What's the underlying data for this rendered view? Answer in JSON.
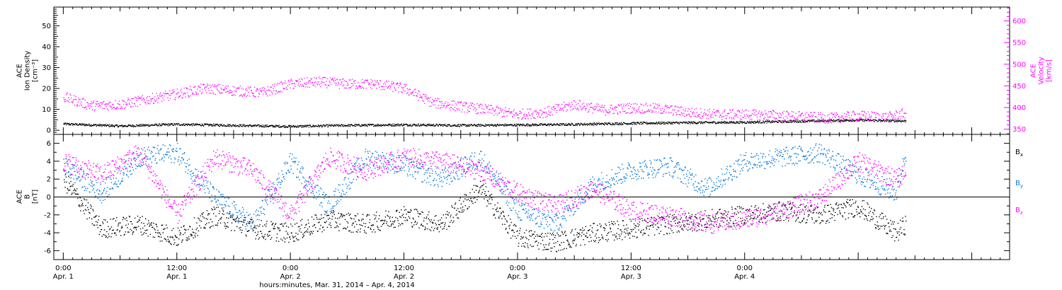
{
  "chart_data": [
    {
      "type": "scatter",
      "panel": "top",
      "ylabel_lines": [
        "ACE",
        "Ion Density",
        "[cm⁻³]"
      ],
      "ylim": [
        -2,
        59
      ],
      "yticks": [
        0,
        10,
        20,
        30,
        40,
        50
      ],
      "y2label_lines": [
        "ACE",
        "Velocity",
        "[km/s]"
      ],
      "y2lim": [
        338,
        632
      ],
      "y2ticks": [
        350,
        400,
        450,
        500,
        550,
        600
      ],
      "series": [
        {
          "axis": "left",
          "color": "#000000",
          "x_hours": [
            0,
            6,
            12,
            18,
            24,
            30,
            36,
            42,
            48,
            54,
            60,
            66,
            72,
            78,
            84,
            89
          ],
          "values": [
            3.2,
            2.2,
            3.0,
            2.5,
            2.0,
            2.5,
            2.8,
            2.5,
            2.7,
            3.0,
            3.5,
            3.8,
            4.0,
            4.5,
            5.0,
            4.6
          ]
        },
        {
          "axis": "right",
          "color": "#ff00ff",
          "x_hours": [
            0,
            3,
            6,
            9,
            12,
            15,
            18,
            21,
            24,
            27,
            30,
            33,
            36,
            39,
            42,
            45,
            48,
            51,
            54,
            57,
            60,
            63,
            66,
            69,
            72,
            75,
            78,
            81,
            84,
            87,
            89
          ],
          "values": [
            425,
            405,
            408,
            420,
            432,
            445,
            440,
            435,
            455,
            460,
            455,
            455,
            445,
            412,
            403,
            395,
            385,
            390,
            408,
            395,
            400,
            398,
            390,
            385,
            385,
            383,
            380,
            376,
            382,
            378,
            388
          ]
        }
      ]
    },
    {
      "type": "scatter",
      "panel": "bottom",
      "ylabel_lines": [
        "ACE",
        "B",
        "[nT]"
      ],
      "ylim": [
        -7,
        7
      ],
      "yticks": [
        -6,
        -4,
        -2,
        0,
        2,
        4,
        6
      ],
      "zero_line": true,
      "series": [
        {
          "name": "Bx",
          "color": "#000000",
          "x_hours": [
            0,
            4,
            8,
            12,
            16,
            20,
            24,
            28,
            32,
            36,
            40,
            44,
            48,
            52,
            56,
            60,
            64,
            68,
            72,
            76,
            80,
            84,
            88,
            89
          ],
          "values": [
            2.0,
            -3.5,
            -3.0,
            -4.5,
            -2.0,
            -3.5,
            -4.0,
            -2.5,
            -3.0,
            -2.0,
            -3.0,
            1.0,
            -4.5,
            -5.0,
            -4.0,
            -3.5,
            -3.0,
            -2.5,
            -2.0,
            -1.5,
            -2.0,
            -1.0,
            -4.0,
            -3.0
          ]
        },
        {
          "name": "By",
          "color": "#0077dd",
          "x_hours": [
            0,
            4,
            8,
            12,
            16,
            20,
            24,
            28,
            32,
            36,
            40,
            44,
            48,
            52,
            56,
            60,
            64,
            68,
            72,
            76,
            80,
            84,
            88,
            89
          ],
          "values": [
            3.5,
            0.5,
            4.5,
            5.0,
            0.0,
            -3.0,
            4.0,
            -1.0,
            4.5,
            3.5,
            2.0,
            4.5,
            -1.5,
            -3.0,
            1.5,
            3.0,
            3.5,
            1.0,
            4.0,
            4.5,
            5.0,
            2.5,
            0.5,
            5.0
          ]
        },
        {
          "name": "Bz",
          "color": "#ff00ff",
          "x_hours": [
            0,
            4,
            8,
            12,
            16,
            20,
            24,
            28,
            32,
            36,
            40,
            44,
            48,
            52,
            56,
            60,
            64,
            68,
            72,
            76,
            80,
            84,
            88,
            89
          ],
          "values": [
            4.0,
            2.5,
            5.0,
            -2.0,
            4.5,
            3.0,
            -2.0,
            4.5,
            3.0,
            4.5,
            4.0,
            3.0,
            0.5,
            -1.0,
            1.0,
            -1.5,
            -2.0,
            -3.0,
            -2.5,
            -1.5,
            0.0,
            4.0,
            2.0,
            3.0
          ]
        }
      ],
      "legend_labels": [
        "B",
        "B",
        "B"
      ],
      "legend_subscripts": [
        "x",
        "y",
        "z"
      ],
      "legend_colors": [
        "#000000",
        "#0077dd",
        "#ff00ff"
      ],
      "legend_position": "right"
    }
  ],
  "x_axis": {
    "xlim_hours": [
      -1,
      100
    ],
    "ticks": [
      {
        "hour": 0,
        "time": "0:00",
        "date": "Apr. 1"
      },
      {
        "hour": 12,
        "time": "12:00",
        "date": "Apr. 1"
      },
      {
        "hour": 24,
        "time": "0:00",
        "date": "Apr. 2"
      },
      {
        "hour": 36,
        "time": "12:00",
        "date": "Apr. 2"
      },
      {
        "hour": 48,
        "time": "0:00",
        "date": "Apr. 3"
      },
      {
        "hour": 60,
        "time": "12:00",
        "date": "Apr. 3"
      },
      {
        "hour": 72,
        "time": "0:00",
        "date": "Apr. 4"
      }
    ],
    "xlabel": "hours:minutes, Mar. 31, 2014 – Apr.  4, 2014"
  }
}
